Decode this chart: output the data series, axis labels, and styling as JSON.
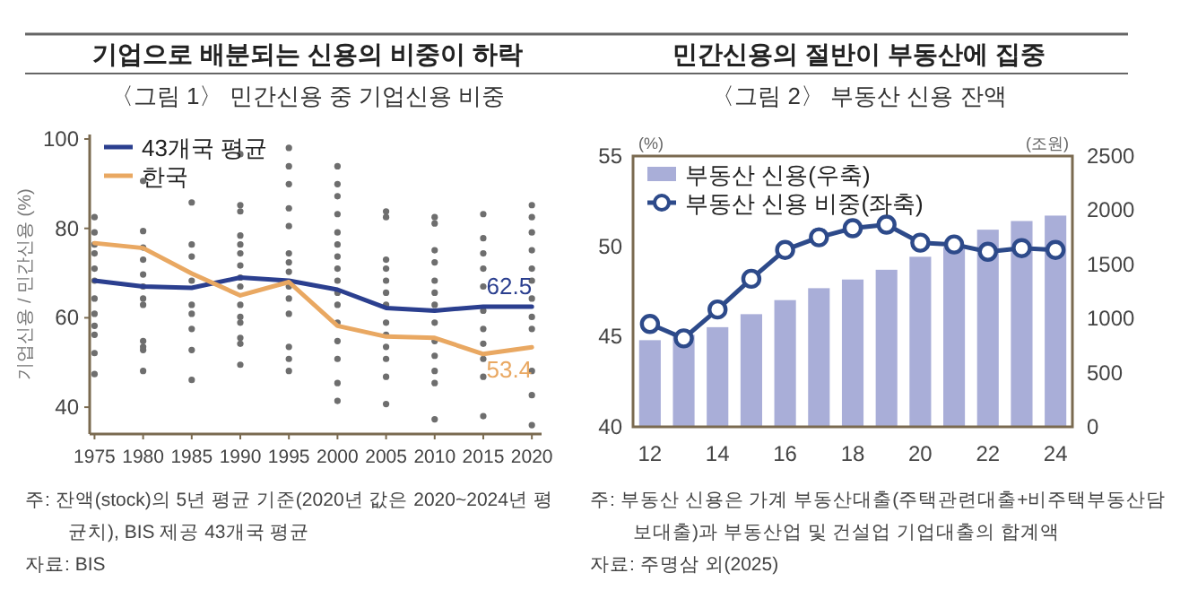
{
  "chart_data": [
    {
      "type": "line",
      "title": "기업으로 배분되는 신용의 비중이 하락",
      "subtitle": "〈그림 1〉 민간신용 중 기업신용 비중",
      "ylabel": "기업신용 / 민간신용 (%)",
      "xlim": [
        1974.5,
        2021
      ],
      "xticks": [
        1975,
        1980,
        1985,
        1990,
        1995,
        2000,
        2005,
        2010,
        2015,
        2020
      ],
      "ylim": [
        34,
        101
      ],
      "yticks": [
        40,
        60,
        80,
        100
      ],
      "legend": "top left",
      "series": [
        {
          "type": "scatter",
          "color": "#6e6e6e",
          "x": [
            1975,
            1975,
            1975,
            1975,
            1975,
            1975,
            1975,
            1975,
            1975,
            1975,
            1975,
            1975,
            1980,
            1980,
            1980,
            1980,
            1980,
            1980,
            1980,
            1980,
            1980,
            1980,
            1980,
            1980,
            1985,
            1985,
            1985,
            1985,
            1985,
            1985,
            1985,
            1985,
            1985,
            1990,
            1990,
            1990,
            1990,
            1990,
            1990,
            1990,
            1990,
            1990,
            1990,
            1990,
            1990,
            1990,
            1990,
            1990,
            1995,
            1995,
            1995,
            1995,
            1995,
            1995,
            1995,
            1995,
            1995,
            1995,
            1995,
            1995,
            1995,
            1995,
            2000,
            2000,
            2000,
            2000,
            2000,
            2000,
            2000,
            2000,
            2000,
            2000,
            2000,
            2000,
            2000,
            2000,
            2000,
            2000,
            2005,
            2005,
            2005,
            2005,
            2005,
            2005,
            2005,
            2005,
            2005,
            2005,
            2005,
            2005,
            2005,
            2010,
            2010,
            2010,
            2010,
            2010,
            2010,
            2010,
            2010,
            2010,
            2010,
            2010,
            2010,
            2010,
            2015,
            2015,
            2015,
            2015,
            2015,
            2015,
            2015,
            2015,
            2015,
            2015,
            2015,
            2020,
            2020,
            2020,
            2020,
            2020,
            2020,
            2020,
            2020,
            2020,
            2020,
            2020,
            2020
          ],
          "values": [
            82.5,
            79.1,
            76.4,
            74.4,
            71.0,
            68.3,
            64.3,
            60.9,
            58.2,
            56.2,
            52.1,
            47.4,
            90.6,
            79.4,
            75.7,
            73.0,
            69.7,
            67.0,
            64.3,
            62.9,
            54.8,
            53.5,
            52.8,
            48.1,
            85.8,
            76.4,
            73.7,
            68.3,
            62.9,
            60.9,
            57.5,
            52.8,
            46.1,
            96.6,
            85.2,
            83.8,
            78.4,
            76.4,
            74.4,
            71.7,
            69.0,
            67.0,
            62.9,
            60.2,
            58.9,
            55.5,
            54.2,
            49.5,
            98.0,
            93.9,
            89.9,
            84.5,
            80.5,
            74.4,
            72.4,
            70.3,
            67.0,
            64.3,
            60.9,
            53.5,
            50.8,
            48.1,
            93.9,
            89.9,
            87.2,
            83.2,
            79.1,
            76.4,
            73.7,
            71.0,
            68.3,
            65.6,
            62.9,
            58.9,
            54.8,
            50.8,
            45.4,
            41.4,
            83.8,
            82.5,
            73.0,
            71.0,
            68.3,
            65.6,
            62.9,
            58.9,
            56.2,
            53.5,
            50.8,
            46.8,
            40.7,
            82.5,
            81.1,
            75.1,
            72.4,
            68.3,
            65.6,
            62.9,
            58.9,
            54.8,
            51.5,
            48.1,
            45.4,
            37.3,
            83.2,
            77.8,
            74.4,
            71.0,
            67.0,
            61.6,
            57.5,
            54.2,
            50.8,
            46.8,
            38.0,
            85.2,
            82.5,
            79.1,
            75.1,
            71.0,
            68.3,
            64.3,
            60.2,
            57.5,
            48.1,
            42.7,
            36.0
          ]
        },
        {
          "name": "43개국 평균",
          "color": "#2b3f8f",
          "x": [
            1975,
            1980,
            1985,
            1990,
            1995,
            2000,
            2005,
            2010,
            2015,
            2020
          ],
          "values": [
            68.3,
            67.0,
            66.7,
            69.0,
            68.3,
            66.3,
            62.2,
            61.6,
            62.5,
            62.5
          ]
        },
        {
          "name": "한국",
          "color": "#e9a862",
          "x": [
            1975,
            1980,
            1985,
            1990,
            1995,
            2000,
            2005,
            2010,
            2015,
            2020
          ],
          "values": [
            76.7,
            75.6,
            69.9,
            65.0,
            68.0,
            58.2,
            55.8,
            55.5,
            51.9,
            53.4
          ]
        }
      ],
      "annotations": [
        {
          "text": "62.5",
          "x": 2020,
          "y": 62.5
        },
        {
          "text": "53.4",
          "x": 2020,
          "y": 53.4
        },
        "주: 잔액(stock)의 5년 평균 기준(2020년 값은 2020~2024년 평균치), BIS 제공 43개국 평균",
        "자료: BIS"
      ]
    },
    {
      "type": "bar",
      "title": "민간신용의 절반이 부동산에 집중",
      "subtitle": "〈그림 2〉 부동산 신용 잔액",
      "ylabel": "(%)",
      "y2label": "(조원)",
      "categories": [
        "12",
        null,
        "14",
        null,
        "16",
        null,
        "18",
        null,
        "20",
        null,
        "22",
        null,
        "24"
      ],
      "ylim": [
        40,
        55
      ],
      "yticks": [
        40,
        45,
        50,
        55
      ],
      "y2lim": [
        0,
        2500
      ],
      "y2ticks": [
        0,
        500,
        1000,
        1500,
        2000,
        2500
      ],
      "legend": "top left",
      "series": [
        {
          "name": "부동산 신용(우축)",
          "type": "bar",
          "axis": "y2",
          "color": "#a9aed8",
          "values": [
            800,
            850,
            920,
            1040,
            1170,
            1280,
            1360,
            1450,
            1570,
            1660,
            1820,
            1900,
            1950
          ]
        },
        {
          "name": "부동산 신용 비중(좌축)",
          "type": "line",
          "marker": "circle",
          "color": "#2d4a8a",
          "values": [
            45.7,
            44.9,
            46.5,
            48.2,
            49.8,
            50.5,
            51.0,
            51.2,
            50.2,
            50.1,
            49.7,
            49.9,
            49.8
          ]
        }
      ],
      "annotations": [
        "주: 부동산 신용은 가계 부동산대출(주택관련대출+비주택부동산담보대출)과 부동산업 및 건설업 기업대출의 합계액",
        "자료: 주명삼 외(2025)"
      ]
    }
  ]
}
